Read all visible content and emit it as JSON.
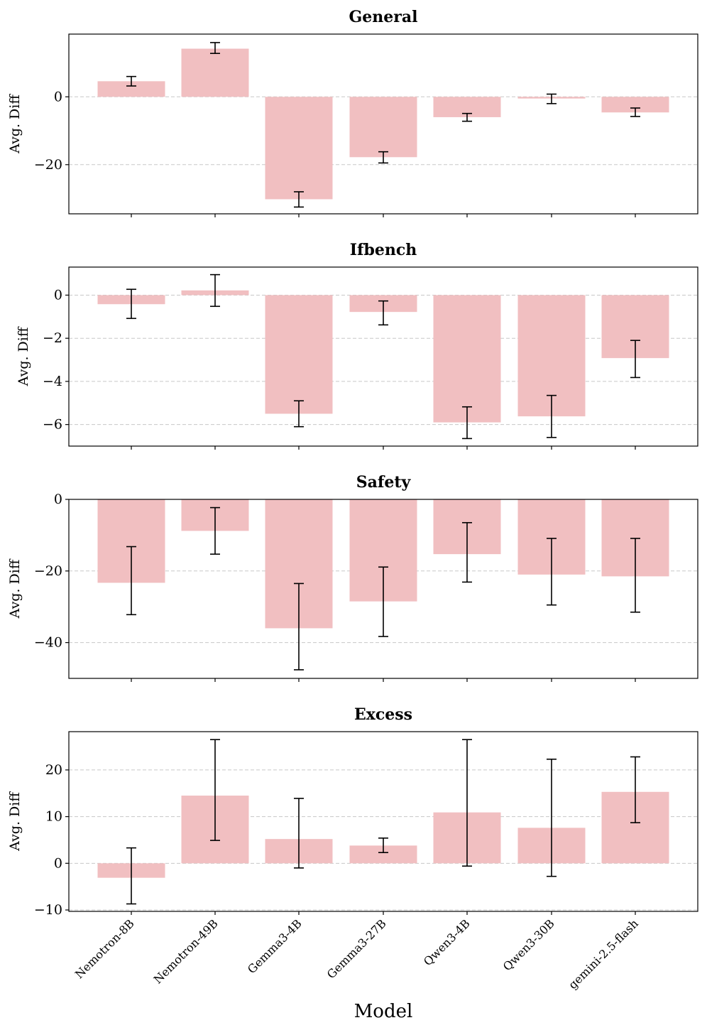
{
  "figure": {
    "xlabel": "Model",
    "bar_color": "#f1bfc1",
    "error_color": "#000000",
    "grid_color": "#c8c8c8"
  },
  "chart_data": [
    {
      "type": "bar",
      "title": "General",
      "ylabel": "Avg. Diff",
      "categories": [
        "Nemotron-8B",
        "Nemotron-49B",
        "Gemma3-4B",
        "Gemma3-27B",
        "Qwen3-4B",
        "Qwen3-30B",
        "gemini-2.5-flash"
      ],
      "values": [
        4.6,
        14.2,
        -30.2,
        -17.8,
        -6.0,
        -0.5,
        -4.6
      ],
      "error_low": [
        3.2,
        12.8,
        -32.5,
        -19.5,
        -7.2,
        -2.0,
        -5.8
      ],
      "error_high": [
        6.0,
        16.0,
        -28.0,
        -16.2,
        -4.9,
        0.8,
        -3.3
      ],
      "ylim": [
        -34.5,
        18.5
      ],
      "yticks": [
        0,
        -20
      ],
      "ytick_labels": [
        "0",
        "−20"
      ],
      "grid": "horizontal dashed",
      "show_xticklabels": false
    },
    {
      "type": "bar",
      "title": "Ifbench",
      "ylabel": "Avg. Diff",
      "categories": [
        "Nemotron-8B",
        "Nemotron-49B",
        "Gemma3-4B",
        "Gemma3-27B",
        "Qwen3-4B",
        "Qwen3-30B",
        "gemini-2.5-flash"
      ],
      "values": [
        -0.42,
        0.22,
        -5.5,
        -0.78,
        -5.9,
        -5.62,
        -2.92
      ],
      "error_low": [
        -1.08,
        -0.52,
        -6.1,
        -1.38,
        -6.65,
        -6.6,
        -3.82
      ],
      "error_high": [
        0.27,
        0.95,
        -4.9,
        -0.27,
        -5.18,
        -4.65,
        -2.1
      ],
      "ylim": [
        -7.0,
        1.3
      ],
      "yticks": [
        0,
        -2,
        -4,
        -6
      ],
      "ytick_labels": [
        "0",
        "−2",
        "−4",
        "−6"
      ],
      "grid": "horizontal dashed",
      "show_xticklabels": false
    },
    {
      "type": "bar",
      "title": "Safety",
      "ylabel": "Avg. Diff",
      "categories": [
        "Nemotron-8B",
        "Nemotron-49B",
        "Gemma3-4B",
        "Gemma3-27B",
        "Qwen3-4B",
        "Qwen3-30B",
        "gemini-2.5-flash"
      ],
      "values": [
        -23.3,
        -8.8,
        -36.0,
        -28.5,
        -15.3,
        -21.0,
        -21.5
      ],
      "error_low": [
        -32.2,
        -15.3,
        -47.6,
        -38.3,
        -23.1,
        -29.5,
        -31.5
      ],
      "error_high": [
        -13.2,
        -2.3,
        -23.5,
        -18.9,
        -6.5,
        -10.9,
        -10.9
      ],
      "ylim": [
        -50.0,
        0
      ],
      "yticks": [
        0,
        -20,
        -40
      ],
      "ytick_labels": [
        "0",
        "−20",
        "−40"
      ],
      "grid": "horizontal dashed",
      "show_xticklabels": false
    },
    {
      "type": "bar",
      "title": "Excess",
      "ylabel": "Avg. Diff",
      "categories": [
        "Nemotron-8B",
        "Nemotron-49B",
        "Gemma3-4B",
        "Gemma3-27B",
        "Qwen3-4B",
        "Qwen3-30B",
        "gemini-2.5-flash"
      ],
      "values": [
        -3.1,
        14.5,
        5.2,
        3.8,
        10.9,
        7.6,
        15.3
      ],
      "error_low": [
        -8.7,
        4.9,
        -1.0,
        2.3,
        -0.6,
        -2.8,
        8.7
      ],
      "error_high": [
        3.3,
        26.5,
        13.9,
        5.4,
        26.5,
        22.3,
        22.8
      ],
      "ylim": [
        -10.3,
        28.2
      ],
      "yticks": [
        20,
        10,
        0,
        -10
      ],
      "ytick_labels": [
        "20",
        "10",
        "0",
        "−10"
      ],
      "grid": "horizontal dashed",
      "show_xticklabels": true
    }
  ]
}
